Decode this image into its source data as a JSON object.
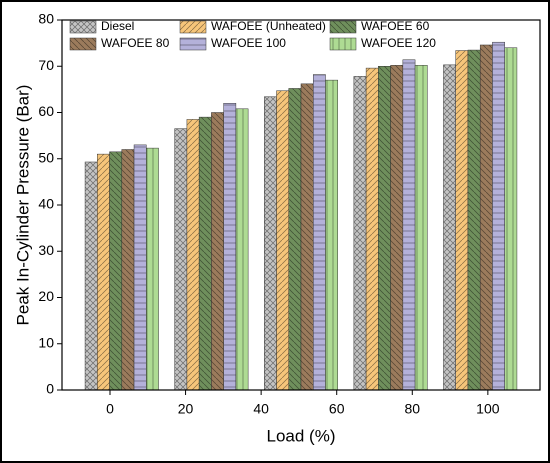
{
  "chart_data": {
    "type": "bar",
    "x_label": "Load (%)",
    "y_label": "Peak In-Cylinder Pressure (Bar)",
    "categories": [
      null,
      null,
      null,
      null,
      null
    ],
    "xlim": [
      -12.7,
      113.8
    ],
    "xticks": [
      0,
      20,
      40,
      60,
      80,
      100
    ],
    "ylim": [
      0,
      80
    ],
    "yticks": [
      0,
      10,
      20,
      30,
      40,
      50,
      60,
      70,
      80
    ],
    "legend": "top-left",
    "series": [
      {
        "name": "Diesel",
        "color": "#c4c4c4",
        "values": [
          49.3,
          56.5,
          63.4,
          67.8,
          70.3
        ]
      },
      {
        "name": "WAFOEE (Unheated)",
        "color": "#f6c57a",
        "values": [
          51,
          58.5,
          64.7,
          69.6,
          73.4
        ]
      },
      {
        "name": "WAFOEE 60",
        "color": "#6f8f5c",
        "values": [
          51.5,
          59,
          65.2,
          70,
          73.5
        ]
      },
      {
        "name": "WAFOEE 80",
        "color": "#9b7b5c",
        "values": [
          52,
          60,
          66.2,
          70.2,
          74.6
        ]
      },
      {
        "name": "WAFOEE 100",
        "color": "#b4b1da",
        "values": [
          53,
          62,
          68.2,
          71.4,
          75.2
        ]
      },
      {
        "name": "WAFOEE 120",
        "color": "#aedb93",
        "values": [
          52.3,
          60.8,
          67,
          70.2,
          74
        ]
      }
    ]
  }
}
